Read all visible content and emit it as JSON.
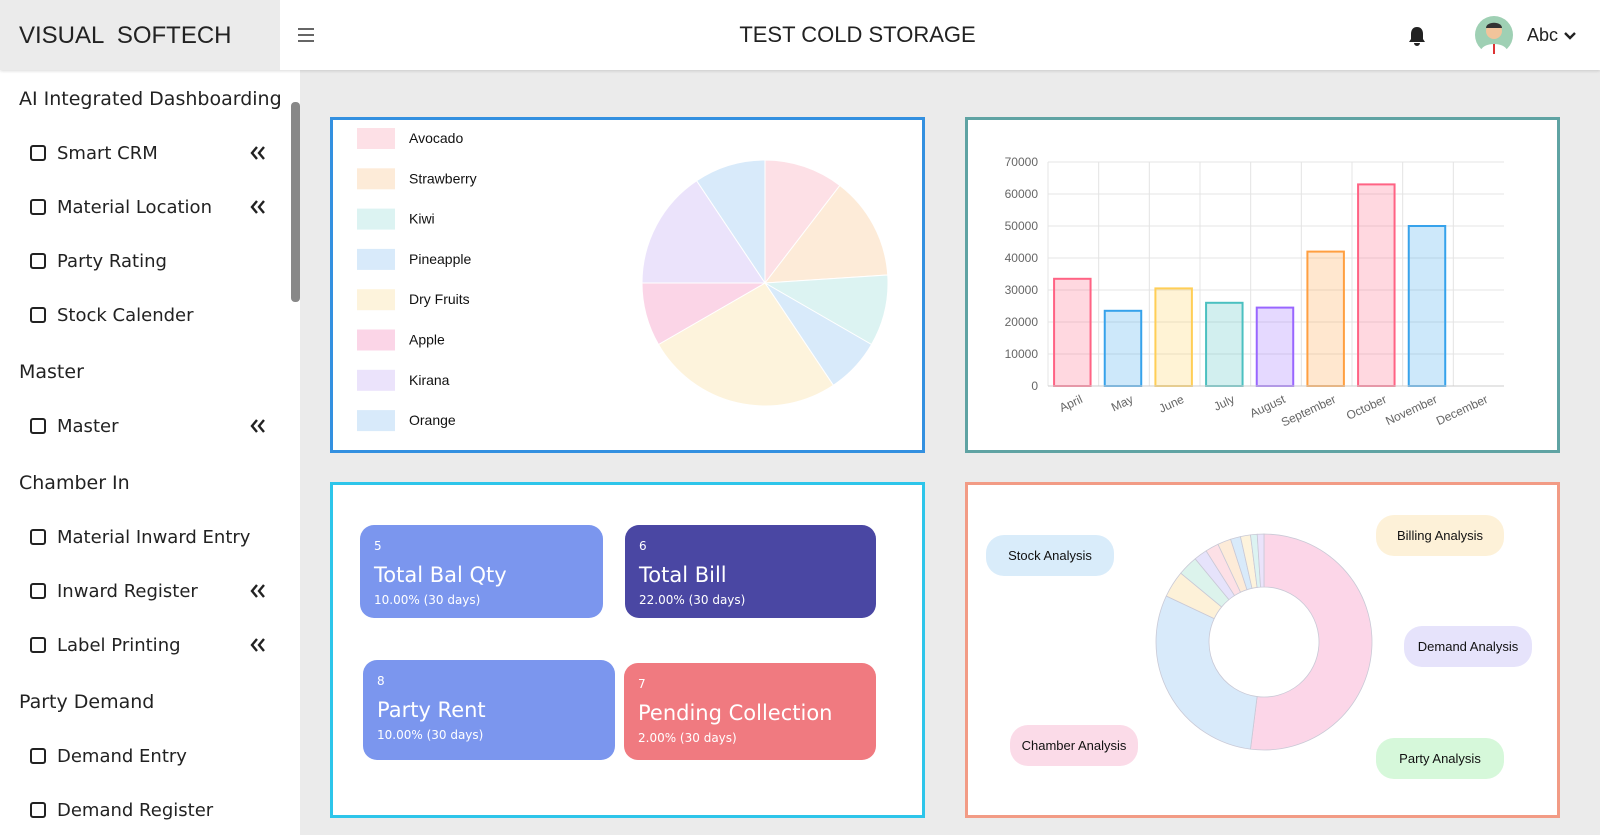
{
  "header": {
    "brand": "VISUAL  SOFTECH",
    "title": "TEST COLD STORAGE",
    "user": "Abc"
  },
  "sidebar": {
    "sections": [
      {
        "title": "AI Integrated Dashboarding",
        "items": [
          {
            "label": "Smart CRM",
            "expand": true
          },
          {
            "label": "Material Location",
            "expand": true
          },
          {
            "label": "Party Rating",
            "expand": false
          },
          {
            "label": "Stock Calender",
            "expand": false
          }
        ]
      },
      {
        "title": "Master",
        "items": [
          {
            "label": "Master",
            "expand": true
          }
        ]
      },
      {
        "title": "Chamber In",
        "items": [
          {
            "label": "Material Inward Entry",
            "expand": false
          },
          {
            "label": "Inward Register",
            "expand": true
          },
          {
            "label": "Label Printing",
            "expand": true
          }
        ]
      },
      {
        "title": "Party Demand",
        "items": [
          {
            "label": "Demand Entry",
            "expand": false
          },
          {
            "label": "Demand Register",
            "expand": false
          }
        ]
      }
    ]
  },
  "chart_data": [
    {
      "type": "pie",
      "categories": [
        "Avocado",
        "Strawberry",
        "Kiwi",
        "Pineapple",
        "Dry Fruits",
        "Apple",
        "Kirana",
        "Orange"
      ],
      "values": [
        10,
        13,
        9,
        7,
        25,
        8,
        15,
        9
      ],
      "colors": [
        "#fde0e6",
        "#fdebd8",
        "#dcf3f2",
        "#d8eafa",
        "#fdf3dc",
        "#fbd5e7",
        "#ebe3fb",
        "#d8eafa"
      ]
    },
    {
      "type": "bar",
      "categories": [
        "April",
        "May",
        "June",
        "July",
        "August",
        "September",
        "October",
        "November",
        "December"
      ],
      "values": [
        33500,
        23500,
        30500,
        26000,
        24500,
        42000,
        63000,
        50000,
        0
      ],
      "colors": [
        "#ff6384",
        "#36a2eb",
        "#ffce56",
        "#4bc0c0",
        "#9966ff",
        "#ff9f40",
        "#ff6384",
        "#36a2eb",
        "#4bc0c0"
      ],
      "ylim": [
        0,
        70000
      ],
      "yticks": [
        0,
        10000,
        20000,
        30000,
        40000,
        50000,
        60000,
        70000
      ],
      "grid": true
    },
    {
      "type": "donut",
      "values": [
        52,
        30,
        4,
        3,
        2,
        2,
        2,
        1.5,
        1.5,
        1,
        1
      ],
      "colors": [
        "#fcd6e8",
        "#d8eafa",
        "#fdf1d8",
        "#dcf3ec",
        "#e6e3fb",
        "#fde0e6",
        "#fdebd8",
        "#d8eafa",
        "#fdf3dc",
        "#dcf3f2",
        "#ebe3fb"
      ]
    }
  ],
  "cards": [
    {
      "number": "5",
      "title": "Total Bal Qty",
      "subtitle": "10.00% (30 days)"
    },
    {
      "number": "6",
      "title": "Total Bill",
      "subtitle": "22.00% (30 days)"
    },
    {
      "number": "8",
      "title": "Party Rent",
      "subtitle": "10.00% (30 days)"
    },
    {
      "number": "7",
      "title": "Pending Collection",
      "subtitle": "2.00% (30 days)"
    }
  ],
  "analysis_buttons": [
    "Stock Analysis",
    "Billing Analysis",
    "Demand Analysis",
    "Chamber Analysis",
    "Party Analysis"
  ]
}
